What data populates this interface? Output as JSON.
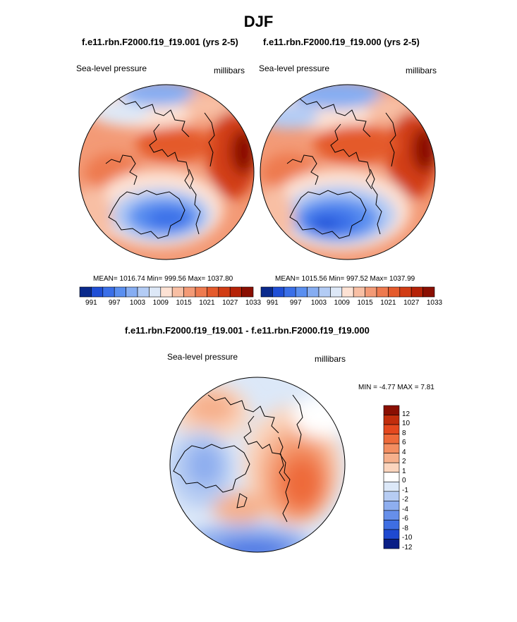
{
  "figure": {
    "season_title": "DJF"
  },
  "panels": [
    {
      "title": "f.e11.rbn.F2000.f19_f19.001 (yrs 2-5)",
      "variable_label": "Sea-level pressure",
      "units_label": "millibars",
      "stats": "MEAN= 1016.74  Min= 999.56  Max= 1037.80"
    },
    {
      "title": "f.e11.rbn.F2000.f19_f19.000 (yrs 2-5)",
      "variable_label": "Sea-level pressure",
      "units_label": "millibars",
      "stats": "MEAN= 1015.56  Min= 997.52  Max= 1037.99"
    },
    {
      "title": "f.e11.rbn.F2000.f19_f19.001 - f.e11.rbn.F2000.f19_f19.000",
      "variable_label": "Sea-level pressure",
      "units_label": "millibars",
      "stats": "MIN =  -4.77 MAX =   7.81"
    }
  ],
  "colorbars": {
    "absolute": {
      "tick_labels": [
        "991",
        "997",
        "1003",
        "1009",
        "1015",
        "1021",
        "1027",
        "1033"
      ],
      "colors": [
        "#0a2a8c",
        "#1f4fd6",
        "#3a6fe8",
        "#5a8ff0",
        "#86adf2",
        "#b3ccf5",
        "#dde8f7",
        "#fde2d4",
        "#f8bfa4",
        "#f39a76",
        "#ee7a4f",
        "#e45a2c",
        "#d13c14",
        "#b52207",
        "#8a0f02"
      ]
    },
    "difference": {
      "tick_labels": [
        "12",
        "10",
        "8",
        "6",
        "4",
        "2",
        "1",
        "0",
        "-1",
        "-2",
        "-4",
        "-6",
        "-8",
        "-10",
        "-12"
      ],
      "colors": [
        "#8a0f02",
        "#c12d0c",
        "#e4481e",
        "#ee6a3a",
        "#f38e61",
        "#f6b08c",
        "#fbd5be",
        "#ffffff",
        "#dce8f8",
        "#b6ccf3",
        "#8eaeef",
        "#668fea",
        "#3e6ee2",
        "#1e49d0",
        "#0a1f86"
      ]
    }
  },
  "chart_data": [
    {
      "type": "heatmap",
      "title": "f.e11.rbn.F2000.f19_f19.001 (yrs 2-5)",
      "variable": "Sea-level pressure",
      "units": "millibars",
      "season": "DJF",
      "projection": "north polar stereographic",
      "mean": 1016.74,
      "min": 999.56,
      "max": 1037.8,
      "contour_levels": [
        991,
        994,
        997,
        1000,
        1003,
        1006,
        1009,
        1012,
        1015,
        1018,
        1021,
        1024,
        1027,
        1030,
        1033
      ]
    },
    {
      "type": "heatmap",
      "title": "f.e11.rbn.F2000.f19_f19.000 (yrs 2-5)",
      "variable": "Sea-level pressure",
      "units": "millibars",
      "season": "DJF",
      "projection": "north polar stereographic",
      "mean": 1015.56,
      "min": 997.52,
      "max": 1037.99,
      "contour_levels": [
        991,
        994,
        997,
        1000,
        1003,
        1006,
        1009,
        1012,
        1015,
        1018,
        1021,
        1024,
        1027,
        1030,
        1033
      ]
    },
    {
      "type": "heatmap",
      "title": "f.e11.rbn.F2000.f19_f19.001 - f.e11.rbn.F2000.f19_f19.000",
      "variable": "Sea-level pressure",
      "units": "millibars",
      "season": "DJF",
      "projection": "north polar stereographic",
      "min": -4.77,
      "max": 7.81,
      "contour_levels": [
        -12,
        -10,
        -8,
        -6,
        -4,
        -2,
        -1,
        0,
        1,
        2,
        4,
        6,
        8,
        10,
        12
      ]
    }
  ]
}
